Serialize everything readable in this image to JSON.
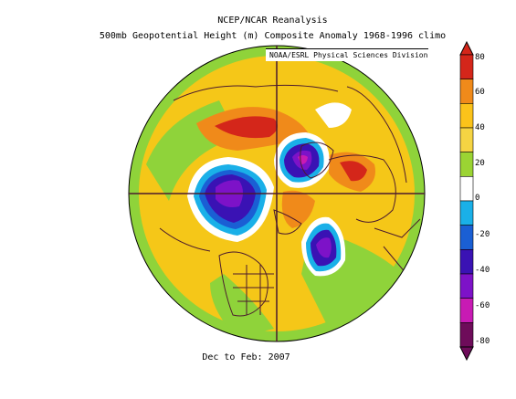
{
  "title_line1": "NCEP/NCAR Reanalysis",
  "title_line2": "500mb Geopotential Height (m) Composite Anomaly 1968-1996 climo",
  "credit": "NOAA/ESRL Physical Sciences Division",
  "footer": "Dec to Feb: 2007",
  "colorbar": {
    "labels": [
      "80",
      "60",
      "40",
      "20",
      "0",
      "-20",
      "-40",
      "-60",
      "-80"
    ],
    "colors": [
      "#d4261a",
      "#f08a1a",
      "#fbc31a",
      "#f5d443",
      "#9bd433",
      "#ffffff",
      "#1ab0e8",
      "#1a5fd4",
      "#3a12b4",
      "#7d12c8",
      "#c81ab4",
      "#6e0c5a"
    ]
  },
  "map_colors": {
    "base_land": "#f5c718",
    "green": "#8fd33a",
    "orange": "#f08a1a",
    "red": "#d4261a",
    "white": "#ffffff",
    "lightblue": "#1ab0e8",
    "blue": "#1a5fd4",
    "indigo": "#3a12b4",
    "purple": "#7d12c8",
    "magenta": "#c81ab4",
    "coast": "#4b1a2e"
  }
}
